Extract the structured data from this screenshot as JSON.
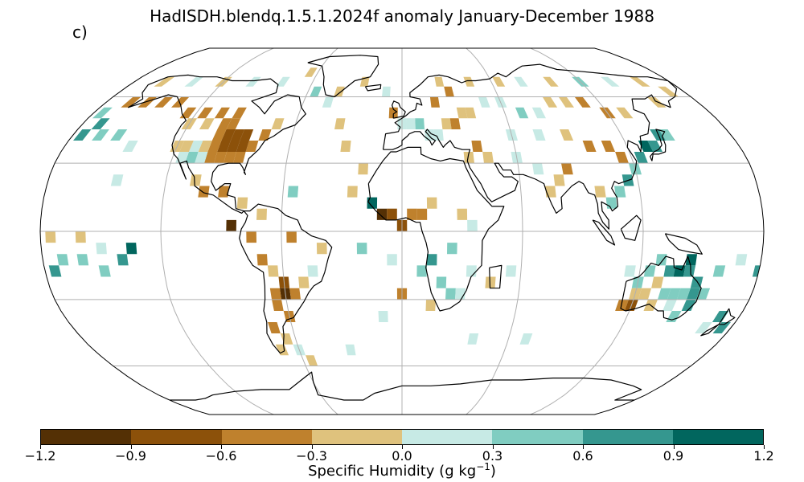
{
  "title": "HadISDH.blendq.1.5.1.2024f anomaly January-December 1988",
  "panel_label": "c)",
  "colorbar": {
    "label_prefix": "Specific Humidity (g kg",
    "label_exp": "−1",
    "label_suffix": ")",
    "ticks": [
      "−1.2",
      "−0.9",
      "−0.6",
      "−0.3",
      "0.0",
      "0.3",
      "0.6",
      "0.9",
      "1.2"
    ],
    "colors": [
      "#543005",
      "#8c510a",
      "#bf812d",
      "#dfc27d",
      "#c7eae5",
      "#80cdc1",
      "#35978f",
      "#01665e"
    ]
  },
  "chart_data": {
    "type": "heatmap",
    "projection": "Robinson",
    "variable": "Specific Humidity anomaly",
    "units": "g kg-1",
    "period": "January-December 1988",
    "color_range": [
      -1.2,
      1.2
    ],
    "levels": [
      -1.2,
      -0.9,
      -0.6,
      -0.3,
      0.0,
      0.3,
      0.6,
      0.9,
      1.2
    ],
    "grid_resolution_deg": 5,
    "gridlines": true,
    "cells": [
      {
        "lon": -95,
        "lat": 42.5,
        "v": -0.7
      },
      {
        "lon": -90,
        "lat": 42.5,
        "v": -0.7
      },
      {
        "lon": -85,
        "lat": 42.5,
        "v": -0.75
      },
      {
        "lon": -100,
        "lat": 42.5,
        "v": -0.6
      },
      {
        "lon": -80,
        "lat": 37.5,
        "v": -0.5
      },
      {
        "lon": -85,
        "lat": 37.5,
        "v": -0.7
      },
      {
        "lon": -90,
        "lat": 37.5,
        "v": -0.8
      },
      {
        "lon": -95,
        "lat": 37.5,
        "v": -0.7
      },
      {
        "lon": -100,
        "lat": 37.5,
        "v": -0.45
      },
      {
        "lon": -105,
        "lat": 37.5,
        "v": -0.2
      },
      {
        "lon": -110,
        "lat": 37.5,
        "v": 0.2
      },
      {
        "lon": -115,
        "lat": 37.5,
        "v": -0.2
      },
      {
        "lon": -120,
        "lat": 37.5,
        "v": -0.1
      },
      {
        "lon": -100,
        "lat": 32.5,
        "v": -0.5
      },
      {
        "lon": -95,
        "lat": 32.5,
        "v": -0.4
      },
      {
        "lon": -90,
        "lat": 32.5,
        "v": -0.5
      },
      {
        "lon": -85,
        "lat": 32.5,
        "v": -0.4
      },
      {
        "lon": -105,
        "lat": 32.5,
        "v": 0.1
      },
      {
        "lon": -110,
        "lat": 32.5,
        "v": 0.4
      },
      {
        "lon": -115,
        "lat": 32.5,
        "v": 0.2
      },
      {
        "lon": -100,
        "lat": 47.5,
        "v": -0.4
      },
      {
        "lon": -95,
        "lat": 47.5,
        "v": -0.4
      },
      {
        "lon": -110,
        "lat": 47.5,
        "v": -0.2
      },
      {
        "lon": -120,
        "lat": 47.5,
        "v": -0.2
      },
      {
        "lon": -75,
        "lat": 42.5,
        "v": -0.4
      },
      {
        "lon": -70,
        "lat": 47.5,
        "v": -0.2
      },
      {
        "lon": -105,
        "lat": 52.5,
        "v": -0.5
      },
      {
        "lon": -115,
        "lat": 52.5,
        "v": -0.5
      },
      {
        "lon": -125,
        "lat": 52.5,
        "v": -0.4
      },
      {
        "lon": -95,
        "lat": 52.5,
        "v": -0.4
      },
      {
        "lon": -135,
        "lat": 57.5,
        "v": -0.4
      },
      {
        "lon": -145,
        "lat": 57.5,
        "v": -0.4
      },
      {
        "lon": -155,
        "lat": 57.5,
        "v": -0.4
      },
      {
        "lon": -165,
        "lat": 57.5,
        "v": -0.4
      },
      {
        "lon": -175,
        "lat": 52.5,
        "v": 0.4
      },
      {
        "lon": -170,
        "lat": 47.5,
        "v": 0.7
      },
      {
        "lon": -175,
        "lat": 42.5,
        "v": 0.7
      },
      {
        "lon": -165,
        "lat": 42.5,
        "v": 0.4
      },
      {
        "lon": -155,
        "lat": 42.5,
        "v": 0.5
      },
      {
        "lon": -145,
        "lat": 37.5,
        "v": 0.2
      },
      {
        "lon": -105,
        "lat": 22.5,
        "v": -0.3
      },
      {
        "lon": -100,
        "lat": 17.5,
        "v": -0.4
      },
      {
        "lon": -90,
        "lat": 17.5,
        "v": -0.5
      },
      {
        "lon": -80,
        "lat": 12.5,
        "v": -0.3
      },
      {
        "lon": -70,
        "lat": 7.5,
        "v": -0.2
      },
      {
        "lon": -55,
        "lat": 17.5,
        "v": 0.4
      },
      {
        "lon": -85,
        "lat": 2.5,
        "v": -1.0
      },
      {
        "lon": -75,
        "lat": -2.5,
        "v": -0.5
      },
      {
        "lon": -70,
        "lat": -12.5,
        "v": -0.4
      },
      {
        "lon": -65,
        "lat": -17.5,
        "v": -0.3
      },
      {
        "lon": -60,
        "lat": -22.5,
        "v": -0.8
      },
      {
        "lon": -60,
        "lat": -27.5,
        "v": -1.0
      },
      {
        "lon": -65,
        "lat": -27.5,
        "v": -0.6
      },
      {
        "lon": -55,
        "lat": -27.5,
        "v": -0.5
      },
      {
        "lon": -65,
        "lat": -32.5,
        "v": -0.5
      },
      {
        "lon": -60,
        "lat": -37.5,
        "v": -0.5
      },
      {
        "lon": -70,
        "lat": -42.5,
        "v": -0.4
      },
      {
        "lon": -65,
        "lat": -47.5,
        "v": -0.3
      },
      {
        "lon": -50,
        "lat": -22.5,
        "v": -0.2
      },
      {
        "lon": -45,
        "lat": -17.5,
        "v": 0.2
      },
      {
        "lon": -40,
        "lat": -7.5,
        "v": -0.2
      },
      {
        "lon": -55,
        "lat": -2.5,
        "v": -0.5
      },
      {
        "lon": -5,
        "lat": 52.5,
        "v": -0.5
      },
      {
        "lon": 0,
        "lat": 47.5,
        "v": 0.2
      },
      {
        "lon": 5,
        "lat": 47.5,
        "v": 0.2
      },
      {
        "lon": 10,
        "lat": 47.5,
        "v": 0.3
      },
      {
        "lon": 15,
        "lat": 42.5,
        "v": 0.2
      },
      {
        "lon": 20,
        "lat": 42.5,
        "v": 0.1
      },
      {
        "lon": 25,
        "lat": 47.5,
        "v": -0.2
      },
      {
        "lon": 30,
        "lat": 47.5,
        "v": -0.4
      },
      {
        "lon": 35,
        "lat": 52.5,
        "v": -0.2
      },
      {
        "lon": 40,
        "lat": 52.5,
        "v": -0.2
      },
      {
        "lon": 20,
        "lat": 57.5,
        "v": -0.4
      },
      {
        "lon": 30,
        "lat": 62.5,
        "v": -0.5
      },
      {
        "lon": 50,
        "lat": 57.5,
        "v": 0.2
      },
      {
        "lon": 60,
        "lat": 57.5,
        "v": 0.2
      },
      {
        "lon": 70,
        "lat": 52.5,
        "v": 0.3
      },
      {
        "lon": 80,
        "lat": 52.5,
        "v": 0.2
      },
      {
        "lon": 90,
        "lat": 57.5,
        "v": -0.2
      },
      {
        "lon": 100,
        "lat": 57.5,
        "v": -0.3
      },
      {
        "lon": 110,
        "lat": 57.5,
        "v": -0.4
      },
      {
        "lon": 120,
        "lat": 52.5,
        "v": -0.5
      },
      {
        "lon": 130,
        "lat": 52.5,
        "v": -0.3
      },
      {
        "lon": 60,
        "lat": 42.5,
        "v": 0.2
      },
      {
        "lon": 75,
        "lat": 42.5,
        "v": 0.2
      },
      {
        "lon": 90,
        "lat": 42.5,
        "v": -0.3
      },
      {
        "lon": 100,
        "lat": 37.5,
        "v": -0.4
      },
      {
        "lon": 110,
        "lat": 37.5,
        "v": -0.5
      },
      {
        "lon": 115,
        "lat": 32.5,
        "v": -0.4
      },
      {
        "lon": 120,
        "lat": 27.5,
        "v": 0.3
      },
      {
        "lon": 125,
        "lat": 32.5,
        "v": 0.6
      },
      {
        "lon": 130,
        "lat": 37.5,
        "v": 0.9
      },
      {
        "lon": 135,
        "lat": 37.5,
        "v": 0.7
      },
      {
        "lon": 140,
        "lat": 42.5,
        "v": 0.6
      },
      {
        "lon": 145,
        "lat": 42.5,
        "v": 0.5
      },
      {
        "lon": 115,
        "lat": 22.5,
        "v": 0.6
      },
      {
        "lon": 110,
        "lat": 17.5,
        "v": 0.5
      },
      {
        "lon": 105,
        "lat": 12.5,
        "v": 0.3
      },
      {
        "lon": 100,
        "lat": 17.5,
        "v": -0.3
      },
      {
        "lon": 80,
        "lat": 22.5,
        "v": -0.3
      },
      {
        "lon": 75,
        "lat": 17.5,
        "v": -0.2
      },
      {
        "lon": 85,
        "lat": 27.5,
        "v": -0.4
      },
      {
        "lon": 70,
        "lat": 27.5,
        "v": 0.2
      },
      {
        "lon": 60,
        "lat": 32.5,
        "v": 0.2
      },
      {
        "lon": 45,
        "lat": 32.5,
        "v": -0.2
      },
      {
        "lon": 35,
        "lat": 32.5,
        "v": -0.3
      },
      {
        "lon": 40,
        "lat": 37.5,
        "v": -0.4
      },
      {
        "lon": -15,
        "lat": 12.5,
        "v": 0.9
      },
      {
        "lon": -10,
        "lat": 7.5,
        "v": -1.0
      },
      {
        "lon": -5,
        "lat": 7.5,
        "v": -0.7
      },
      {
        "lon": 0,
        "lat": 2.5,
        "v": -0.8
      },
      {
        "lon": 5,
        "lat": 7.5,
        "v": -0.4
      },
      {
        "lon": 10,
        "lat": 7.5,
        "v": -0.6
      },
      {
        "lon": 15,
        "lat": 12.5,
        "v": -0.3
      },
      {
        "lon": 30,
        "lat": 7.5,
        "v": -0.3
      },
      {
        "lon": 35,
        "lat": 2.5,
        "v": 0.2
      },
      {
        "lon": 25,
        "lat": -7.5,
        "v": 0.5
      },
      {
        "lon": 15,
        "lat": -12.5,
        "v": 0.6
      },
      {
        "lon": 10,
        "lat": -17.5,
        "v": 0.4
      },
      {
        "lon": 20,
        "lat": -22.5,
        "v": 0.4
      },
      {
        "lon": 25,
        "lat": -27.5,
        "v": 0.3
      },
      {
        "lon": 15,
        "lat": -32.5,
        "v": -0.2
      },
      {
        "lon": 30,
        "lat": -27.5,
        "v": 0.2
      },
      {
        "lon": 35,
        "lat": -17.5,
        "v": 0.2
      },
      {
        "lon": 45,
        "lat": -22.5,
        "v": -0.2
      },
      {
        "lon": 55,
        "lat": -17.5,
        "v": 0.2
      },
      {
        "lon": -20,
        "lat": -7.5,
        "v": 0.4
      },
      {
        "lon": -5,
        "lat": -12.5,
        "v": 0.2
      },
      {
        "lon": -10,
        "lat": -37.5,
        "v": 0.2
      },
      {
        "lon": 0,
        "lat": -27.5,
        "v": -0.4
      },
      {
        "lon": 115,
        "lat": -17.5,
        "v": 0.2
      },
      {
        "lon": 120,
        "lat": -22.5,
        "v": 0.3
      },
      {
        "lon": 125,
        "lat": -17.5,
        "v": 0.4
      },
      {
        "lon": 130,
        "lat": -12.5,
        "v": 0.5
      },
      {
        "lon": 135,
        "lat": -17.5,
        "v": 0.7
      },
      {
        "lon": 140,
        "lat": -17.5,
        "v": 0.9
      },
      {
        "lon": 145,
        "lat": -12.5,
        "v": 1.0
      },
      {
        "lon": 145,
        "lat": -17.5,
        "v": 0.8
      },
      {
        "lon": 150,
        "lat": -22.5,
        "v": 0.8
      },
      {
        "lon": 150,
        "lat": -27.5,
        "v": 0.7
      },
      {
        "lon": 145,
        "lat": -27.5,
        "v": 0.5
      },
      {
        "lon": 140,
        "lat": -27.5,
        "v": 0.4
      },
      {
        "lon": 135,
        "lat": -27.5,
        "v": 0.3
      },
      {
        "lon": 130,
        "lat": -22.5,
        "v": -0.2
      },
      {
        "lon": 125,
        "lat": -27.5,
        "v": -0.2
      },
      {
        "lon": 120,
        "lat": -27.5,
        "v": -0.3
      },
      {
        "lon": 115,
        "lat": -32.5,
        "v": -0.6
      },
      {
        "lon": 120,
        "lat": -32.5,
        "v": -0.8
      },
      {
        "lon": 130,
        "lat": -32.5,
        "v": -0.3
      },
      {
        "lon": 140,
        "lat": -32.5,
        "v": 0.2
      },
      {
        "lon": 145,
        "lat": -37.5,
        "v": 0.5
      },
      {
        "lon": 150,
        "lat": -32.5,
        "v": 0.6
      },
      {
        "lon": 155,
        "lat": -27.5,
        "v": 0.4
      },
      {
        "lon": 170,
        "lat": -37.5,
        "v": 0.6
      },
      {
        "lon": 175,
        "lat": -42.5,
        "v": 0.7
      },
      {
        "lon": 165,
        "lat": -42.5,
        "v": 0.2
      },
      {
        "lon": 160,
        "lat": -17.5,
        "v": 0.3
      },
      {
        "lon": 170,
        "lat": -12.5,
        "v": 0.2
      },
      {
        "lon": 180,
        "lat": -17.5,
        "v": 0.8
      },
      {
        "lon": -170,
        "lat": -12.5,
        "v": 0.4
      },
      {
        "lon": -175,
        "lat": -17.5,
        "v": 0.6
      },
      {
        "lon": -160,
        "lat": -12.5,
        "v": 0.5
      },
      {
        "lon": -150,
        "lat": -17.5,
        "v": 0.4
      },
      {
        "lon": -140,
        "lat": -12.5,
        "v": 0.6
      },
      {
        "lon": -135,
        "lat": -7.5,
        "v": 1.0
      },
      {
        "lon": -150,
        "lat": -7.5,
        "v": 0.2
      },
      {
        "lon": -160,
        "lat": -2.5,
        "v": -0.2
      },
      {
        "lon": -145,
        "lat": 22.5,
        "v": 0.2
      },
      {
        "lon": -175,
        "lat": -2.5,
        "v": -0.2
      },
      {
        "lon": -25,
        "lat": 17.5,
        "v": -0.2
      },
      {
        "lon": -20,
        "lat": 27.5,
        "v": -0.3
      },
      {
        "lon": -30,
        "lat": 37.5,
        "v": -0.2
      },
      {
        "lon": -35,
        "lat": 47.5,
        "v": -0.2
      },
      {
        "lon": -45,
        "lat": 57.5,
        "v": 0.2
      },
      {
        "lon": -55,
        "lat": 62.5,
        "v": 0.3
      },
      {
        "lon": -40,
        "lat": 62.5,
        "v": -0.2
      },
      {
        "lon": -25,
        "lat": 67.5,
        "v": -0.2
      },
      {
        "lon": -10,
        "lat": 62.5,
        "v": 0.2
      },
      {
        "lon": -65,
        "lat": 72.5,
        "v": -0.2
      },
      {
        "lon": -80,
        "lat": 67.5,
        "v": 0.2
      },
      {
        "lon": -100,
        "lat": 67.5,
        "v": 0.2
      },
      {
        "lon": -120,
        "lat": 67.5,
        "v": -0.2
      },
      {
        "lon": -140,
        "lat": 67.5,
        "v": 0.2
      },
      {
        "lon": -160,
        "lat": 67.5,
        "v": -0.2
      },
      {
        "lon": 25,
        "lat": 67.5,
        "v": -0.3
      },
      {
        "lon": 45,
        "lat": 67.5,
        "v": -0.3
      },
      {
        "lon": 65,
        "lat": 67.5,
        "v": -0.3
      },
      {
        "lon": 80,
        "lat": 67.5,
        "v": 0.2
      },
      {
        "lon": 100,
        "lat": 67.5,
        "v": -0.2
      },
      {
        "lon": 120,
        "lat": 67.5,
        "v": 0.3
      },
      {
        "lon": 140,
        "lat": 67.5,
        "v": 0.2
      },
      {
        "lon": 160,
        "lat": 67.5,
        "v": -0.2
      },
      {
        "lon": 170,
        "lat": 62.5,
        "v": -0.3
      },
      {
        "lon": 155,
        "lat": 57.5,
        "v": -0.3
      },
      {
        "lon": -70,
        "lat": -52.5,
        "v": -0.2
      },
      {
        "lon": -60,
        "lat": -52.5,
        "v": 0.2
      },
      {
        "lon": -55,
        "lat": -57.5,
        "v": -0.2
      },
      {
        "lon": -30,
        "lat": -52.5,
        "v": 0.2
      },
      {
        "lon": 40,
        "lat": -47.5,
        "v": 0.2
      },
      {
        "lon": 70,
        "lat": -47.5,
        "v": 0.2
      }
    ]
  }
}
